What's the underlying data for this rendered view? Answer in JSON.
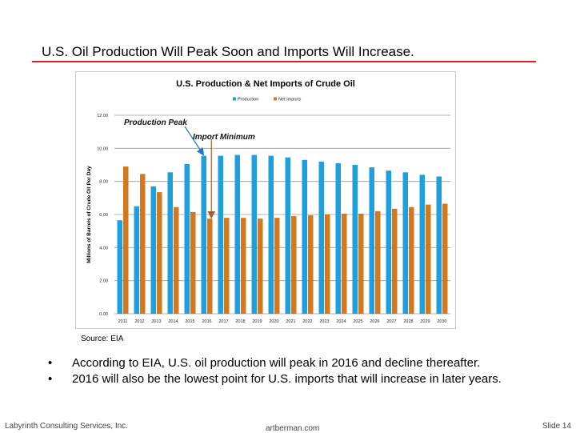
{
  "slide": {
    "title": "U.S. Oil Production Will Peak Soon and Imports Will Increase.",
    "source": "Source:  EIA",
    "bullets": [
      "According to EIA, U.S. oil production will peak in 2016 and decline thereafter.",
      "2016 will also be the lowest point for U.S. imports that will increase in later years."
    ],
    "bullet_symbol": "•",
    "footer": {
      "left": "Labyrinth Consulting Services, Inc.",
      "center": "artberman.com",
      "right": "Slide 14"
    },
    "colors": {
      "title_rule": "#e02020"
    }
  },
  "chart_data": {
    "type": "bar",
    "title": "U.S. Production & Net Imports of Crude Oil",
    "ylabel": "Millions of Barrels of Crude Oil Per Day",
    "xlabel": "",
    "ylim": [
      0,
      12
    ],
    "yticks": [
      "0.00",
      "2.00",
      "4.00",
      "6.00",
      "8.00",
      "10.00",
      "12.00"
    ],
    "grid": true,
    "legend_position": "top-center",
    "categories": [
      "2011",
      "2012",
      "2013",
      "2014",
      "2015",
      "2016",
      "2017",
      "2018",
      "2019",
      "2020",
      "2021",
      "2022",
      "2023",
      "2024",
      "2025",
      "2026",
      "2027",
      "2028",
      "2029",
      "2030"
    ],
    "series": [
      {
        "name": "Production",
        "color": "#1ea0e0",
        "values": [
          5.65,
          6.5,
          7.7,
          8.55,
          9.05,
          9.55,
          9.55,
          9.6,
          9.6,
          9.55,
          9.45,
          9.3,
          9.2,
          9.1,
          9.0,
          8.85,
          8.65,
          8.55,
          8.4,
          8.3
        ]
      },
      {
        "name": "Net Imports",
        "color": "#d2781e",
        "values": [
          8.9,
          8.45,
          7.35,
          6.45,
          6.15,
          5.75,
          5.8,
          5.8,
          5.75,
          5.8,
          5.9,
          5.95,
          6.0,
          6.05,
          6.05,
          6.2,
          6.35,
          6.45,
          6.6,
          6.65
        ]
      }
    ],
    "annotations": [
      {
        "text": "Production Peak",
        "category": "2016",
        "series": "Production",
        "arrow_color": "#1e78c8"
      },
      {
        "text": "Import Minimum",
        "category": "2016",
        "series": "Net Imports",
        "arrow_color": "#a06428"
      }
    ]
  }
}
